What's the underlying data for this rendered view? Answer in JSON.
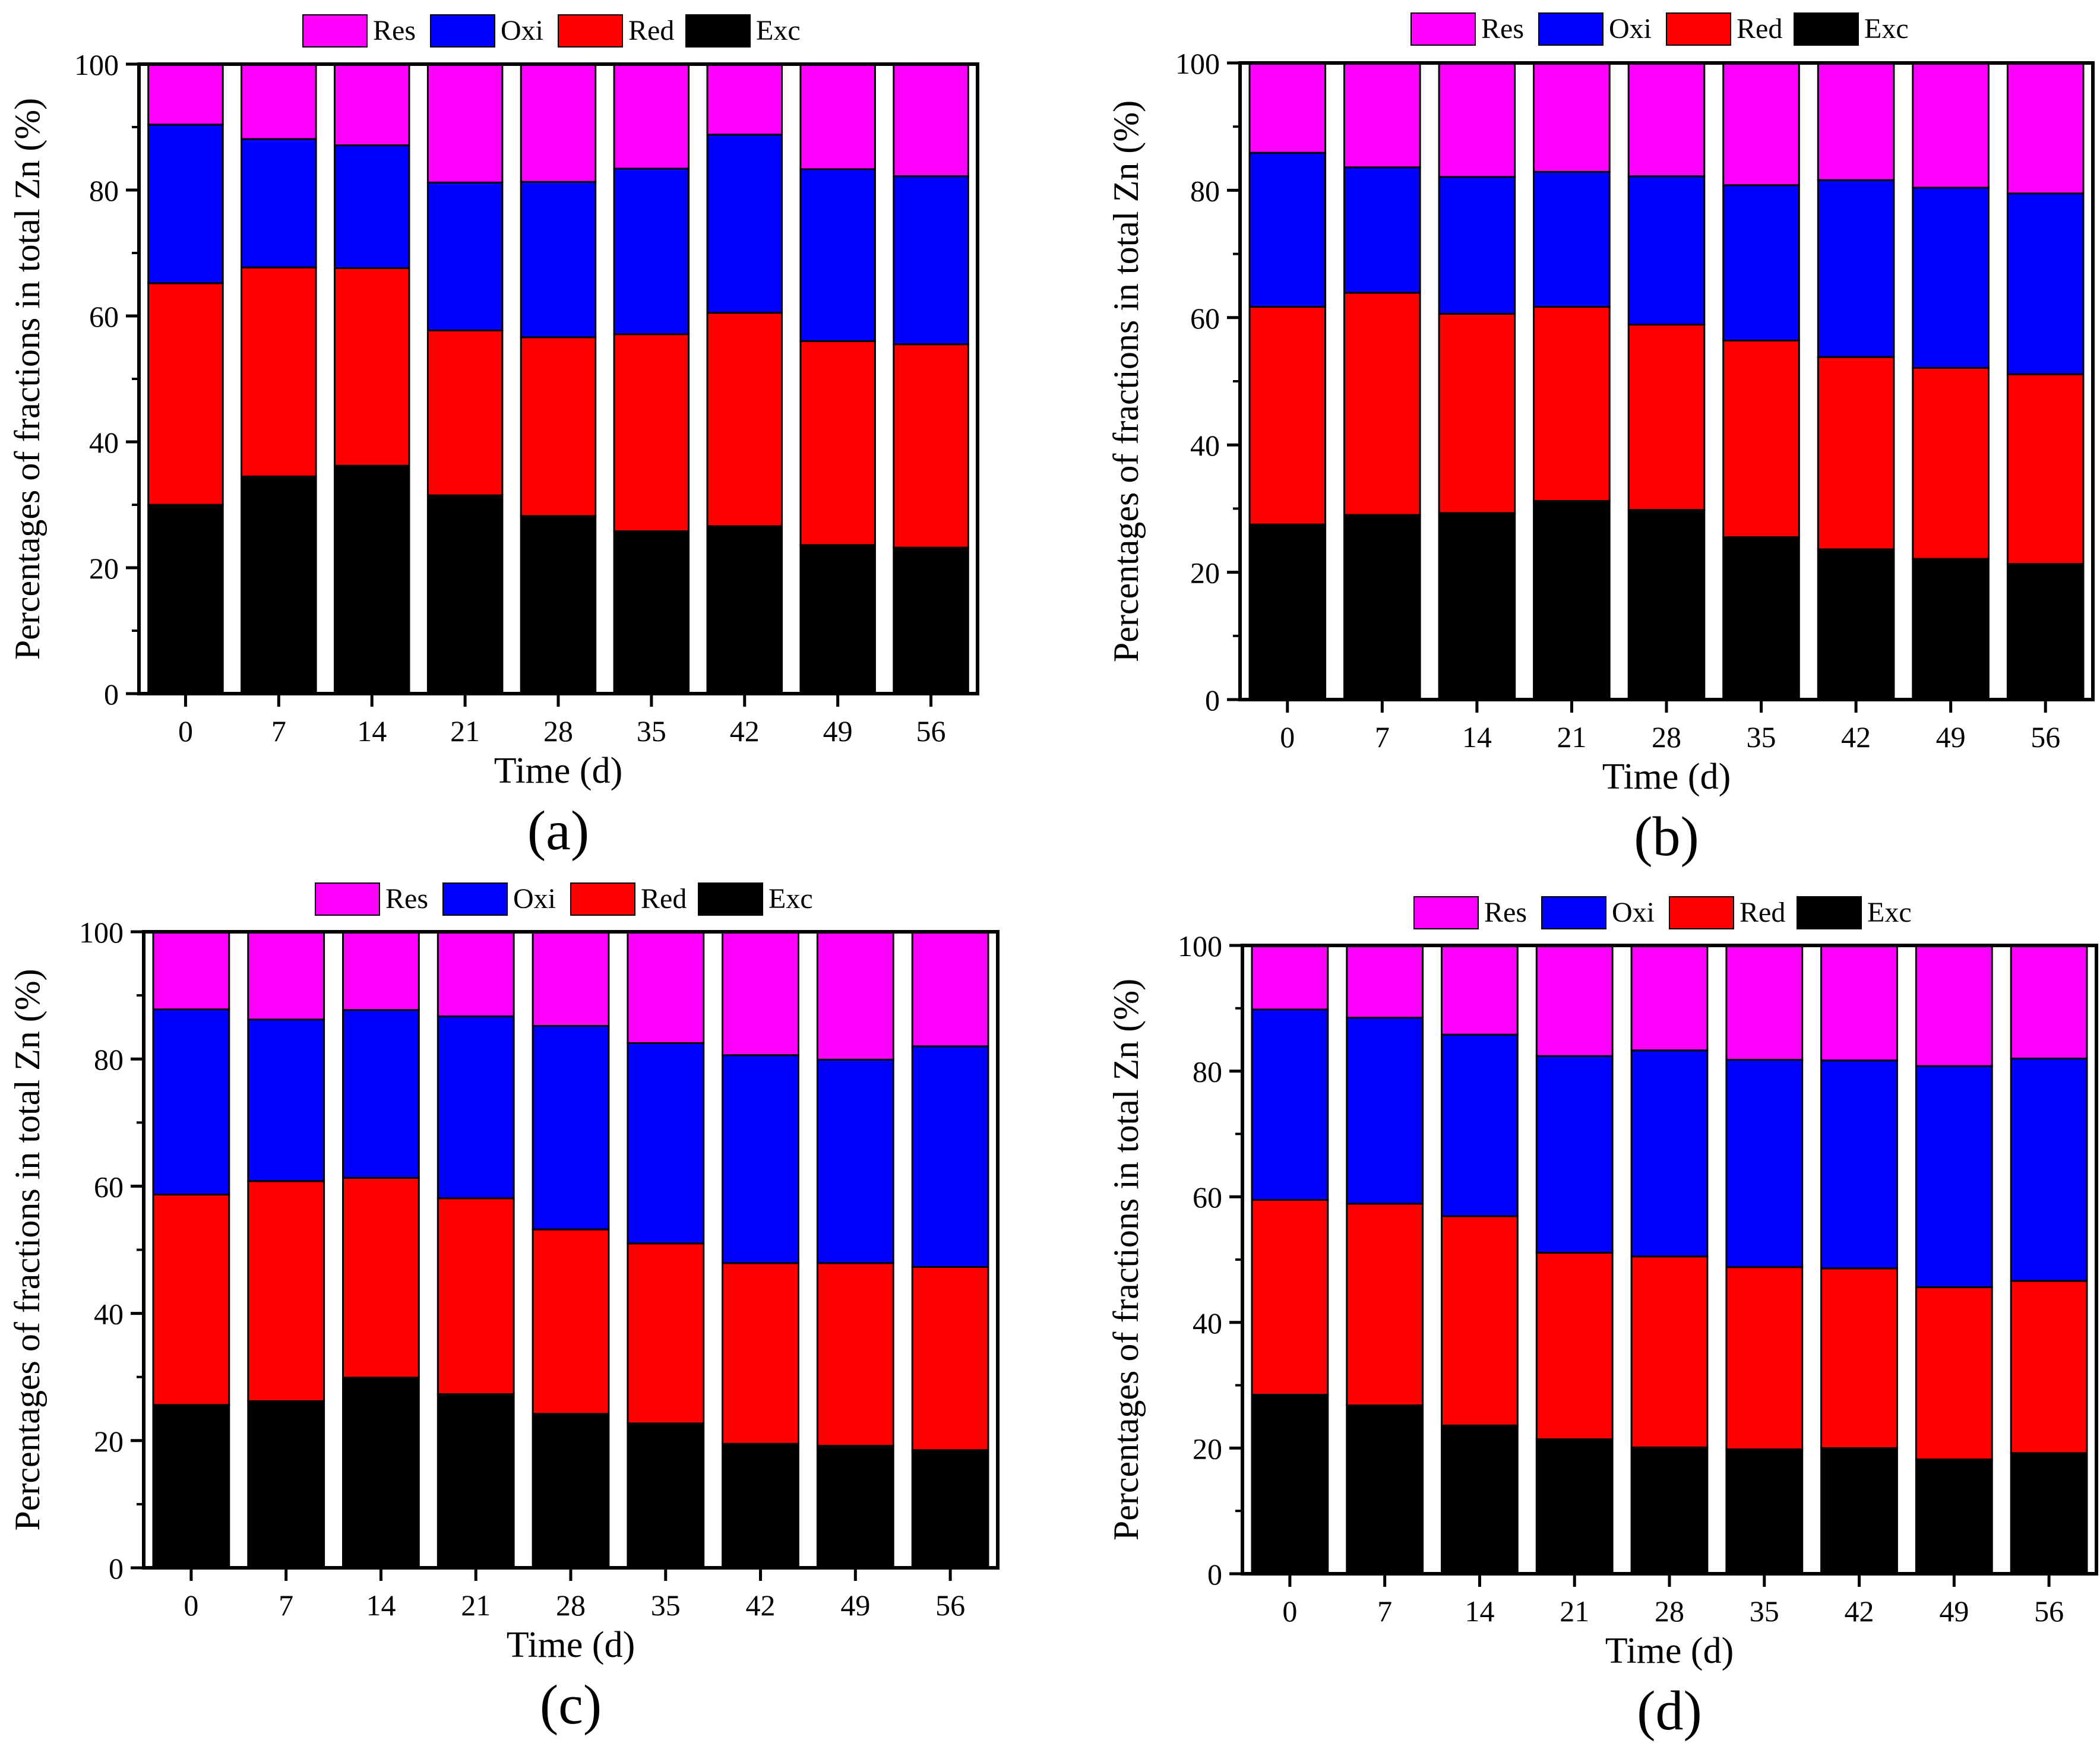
{
  "colors": {
    "Res": "#ff00ff",
    "Oxi": "#0000ff",
    "Red": "#ff0000",
    "Exc": "#000000"
  },
  "chart_data": [
    {
      "type": "bar",
      "stacked": true,
      "panel_label": "(a)",
      "title": "",
      "xlabel": "Time (d)",
      "ylabel": "Percentages of fractions in total Zn (%)",
      "ylim": [
        0,
        100
      ],
      "yticks": [
        0,
        20,
        40,
        60,
        80,
        100
      ],
      "categories": [
        "0",
        "7",
        "14",
        "21",
        "28",
        "35",
        "42",
        "49",
        "56"
      ],
      "legend": [
        "Res",
        "Oxi",
        "Red",
        "Exc"
      ],
      "series": [
        {
          "name": "Exc",
          "values": [
            30.0,
            34.5,
            36.2,
            31.5,
            28.2,
            25.8,
            26.6,
            23.6,
            23.2
          ]
        },
        {
          "name": "Red",
          "values": [
            35.2,
            33.2,
            31.4,
            26.2,
            28.4,
            31.3,
            33.9,
            32.4,
            32.3
          ]
        },
        {
          "name": "Oxi",
          "values": [
            25.2,
            20.4,
            19.5,
            23.5,
            24.7,
            26.3,
            28.3,
            27.3,
            26.7
          ]
        },
        {
          "name": "Res",
          "values": [
            9.6,
            11.9,
            12.9,
            18.8,
            18.7,
            16.6,
            11.2,
            16.7,
            17.8
          ]
        }
      ]
    },
    {
      "type": "bar",
      "stacked": true,
      "panel_label": "(b)",
      "title": "",
      "xlabel": "Time (d)",
      "ylabel": "Percentages of fractions in total Zn (%)",
      "ylim": [
        0,
        100
      ],
      "yticks": [
        0,
        20,
        40,
        60,
        80,
        100
      ],
      "categories": [
        "0",
        "7",
        "14",
        "21",
        "28",
        "35",
        "42",
        "49",
        "56"
      ],
      "legend": [
        "Res",
        "Oxi",
        "Red",
        "Exc"
      ],
      "series": [
        {
          "name": "Exc",
          "values": [
            27.5,
            29.0,
            29.3,
            31.2,
            29.8,
            25.5,
            23.6,
            22.1,
            21.3
          ]
        },
        {
          "name": "Red",
          "values": [
            34.2,
            34.9,
            31.3,
            30.5,
            29.1,
            30.9,
            30.2,
            30.0,
            29.8
          ]
        },
        {
          "name": "Oxi",
          "values": [
            24.2,
            19.7,
            21.5,
            21.2,
            23.3,
            24.4,
            27.8,
            28.3,
            28.4
          ]
        },
        {
          "name": "Res",
          "values": [
            14.1,
            16.4,
            17.9,
            17.1,
            17.8,
            19.2,
            18.4,
            19.6,
            20.5
          ]
        }
      ]
    },
    {
      "type": "bar",
      "stacked": true,
      "panel_label": "(c)",
      "title": "",
      "xlabel": "Time (d)",
      "ylabel": "Percentages of fractions in total Zn (%)",
      "ylim": [
        0,
        100
      ],
      "yticks": [
        0,
        20,
        40,
        60,
        80,
        100
      ],
      "categories": [
        "0",
        "7",
        "14",
        "21",
        "28",
        "35",
        "42",
        "49",
        "56"
      ],
      "legend": [
        "Res",
        "Oxi",
        "Red",
        "Exc"
      ],
      "series": [
        {
          "name": "Exc",
          "values": [
            25.6,
            26.2,
            29.9,
            27.3,
            24.2,
            22.7,
            19.5,
            19.2,
            18.5
          ]
        },
        {
          "name": "Red",
          "values": [
            33.1,
            34.6,
            31.4,
            30.8,
            29.0,
            28.3,
            28.4,
            28.7,
            28.8
          ]
        },
        {
          "name": "Oxi",
          "values": [
            29.1,
            25.4,
            26.4,
            28.6,
            32.0,
            31.5,
            32.7,
            32.0,
            34.7
          ]
        },
        {
          "name": "Res",
          "values": [
            12.2,
            13.8,
            12.3,
            13.3,
            14.8,
            17.5,
            19.4,
            20.1,
            18.0
          ]
        }
      ]
    },
    {
      "type": "bar",
      "stacked": true,
      "panel_label": "(d)",
      "title": "",
      "xlabel": "Time (d)",
      "ylabel": "Percentages of fractions in total Zn (%)",
      "ylim": [
        0,
        100
      ],
      "yticks": [
        0,
        20,
        40,
        60,
        80,
        100
      ],
      "categories": [
        "0",
        "7",
        "14",
        "21",
        "28",
        "35",
        "42",
        "49",
        "56"
      ],
      "legend": [
        "Res",
        "Oxi",
        "Red",
        "Exc"
      ],
      "series": [
        {
          "name": "Exc",
          "values": [
            28.5,
            26.8,
            23.6,
            21.4,
            20.1,
            19.8,
            20.0,
            18.2,
            19.2
          ]
        },
        {
          "name": "Red",
          "values": [
            31.0,
            32.1,
            33.3,
            29.7,
            30.4,
            29.0,
            28.6,
            27.4,
            27.4
          ]
        },
        {
          "name": "Oxi",
          "values": [
            30.3,
            29.6,
            28.9,
            31.3,
            32.8,
            33.0,
            33.1,
            35.2,
            35.4
          ]
        },
        {
          "name": "Res",
          "values": [
            10.2,
            11.5,
            14.2,
            17.6,
            16.7,
            18.2,
            18.3,
            19.2,
            18.0
          ]
        }
      ]
    }
  ]
}
